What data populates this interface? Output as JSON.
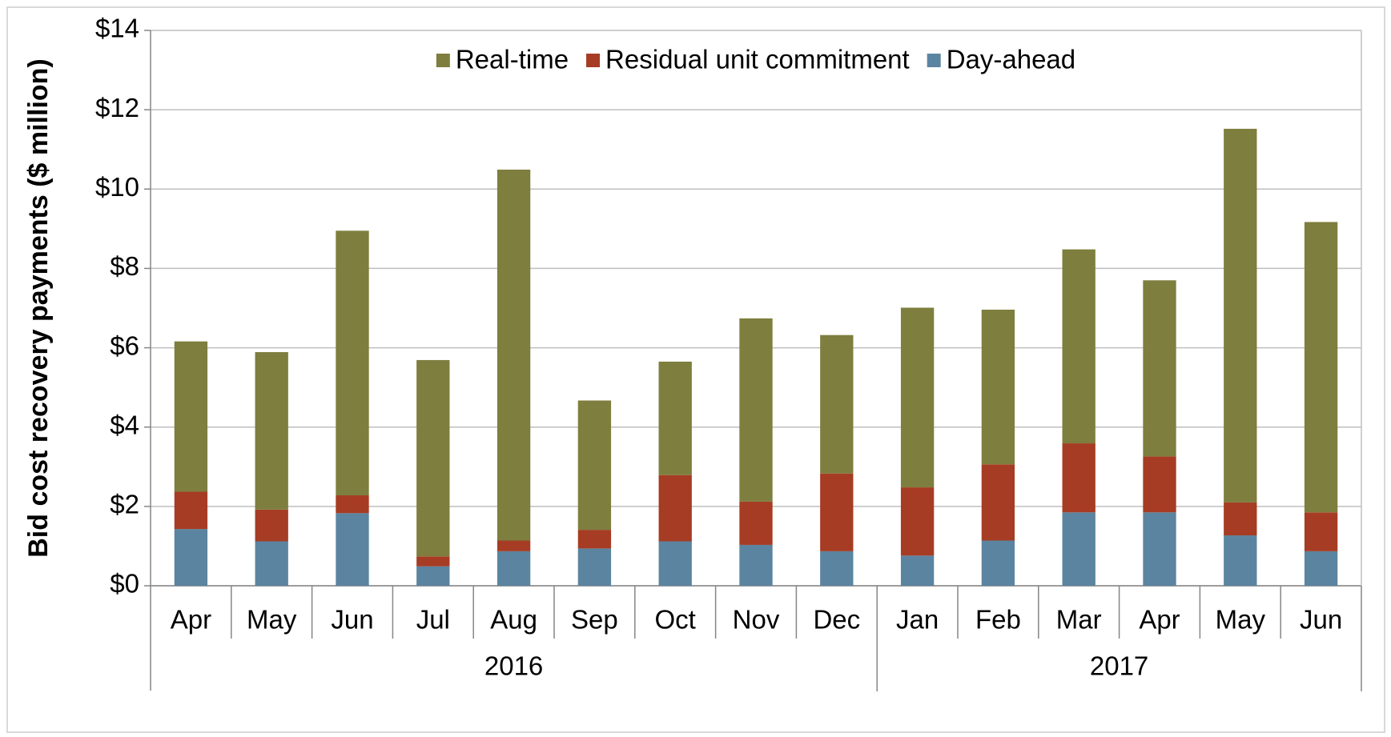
{
  "chart_data": {
    "type": "stacked_bar",
    "y_axis_label": "Bid cost recovery payments ($ million)",
    "categories": [
      "Apr",
      "May",
      "Jun",
      "Jul",
      "Aug",
      "Sep",
      "Oct",
      "Nov",
      "Dec",
      "Jan",
      "Feb",
      "Mar",
      "Apr",
      "May",
      "Jun"
    ],
    "groups": [
      {
        "label": "2016",
        "span": 9
      },
      {
        "label": "2017",
        "span": 6
      }
    ],
    "series": [
      {
        "name": "Day-ahead",
        "color": "#5b84a0",
        "values": [
          1.43,
          1.12,
          1.83,
          0.49,
          0.87,
          0.94,
          1.12,
          1.03,
          0.87,
          0.76,
          1.14,
          1.85,
          1.85,
          1.27,
          0.87
        ]
      },
      {
        "name": "Residual unit commitment",
        "color": "#a63c24",
        "values": [
          0.94,
          0.8,
          0.45,
          0.25,
          0.27,
          0.47,
          1.67,
          1.09,
          1.96,
          1.72,
          1.92,
          1.74,
          1.41,
          0.83,
          0.98
        ]
      },
      {
        "name": "Real-time",
        "color": "#7e7e3e",
        "values": [
          3.79,
          3.97,
          6.67,
          4.95,
          9.35,
          3.26,
          2.86,
          4.62,
          3.49,
          4.53,
          3.9,
          4.89,
          4.44,
          9.42,
          7.32
        ]
      }
    ],
    "ylim": [
      0,
      14
    ],
    "yticks": [
      {
        "value": 0,
        "label": "$0"
      },
      {
        "value": 2,
        "label": "$2"
      },
      {
        "value": 4,
        "label": "$4"
      },
      {
        "value": 6,
        "label": "$6"
      },
      {
        "value": 8,
        "label": "$8"
      },
      {
        "value": 10,
        "label": "$10"
      },
      {
        "value": 12,
        "label": "$12"
      },
      {
        "value": 14,
        "label": "$14"
      }
    ],
    "grid": true,
    "legend": "top"
  }
}
